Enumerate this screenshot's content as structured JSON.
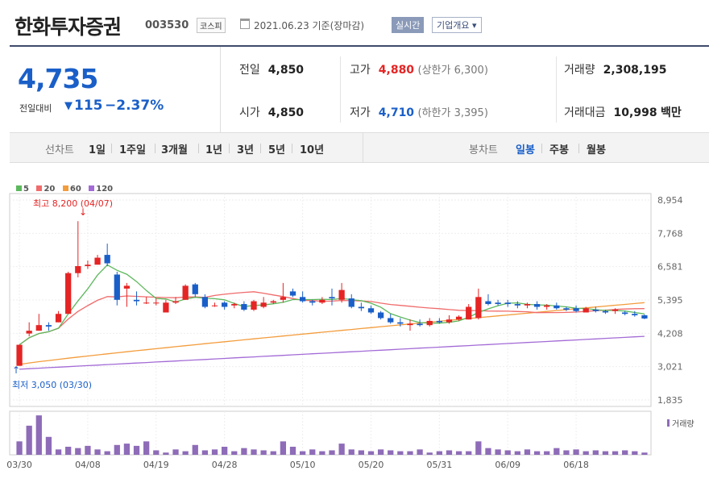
{
  "header": {
    "name": "한화투자증권",
    "code": "003530",
    "market": "코스피",
    "date": "2021.06.23 기준(장마감)",
    "realtime": "실시간",
    "company": "기업개요 ▾"
  },
  "summary": {
    "price": "4,735",
    "change_label": "전일대비",
    "change_arrow": "▼",
    "change": "115",
    "change_pct": "−2.37%",
    "prev_label": "전일",
    "prev": "4,850",
    "open_label": "시가",
    "open": "4,850",
    "high_label": "고가",
    "high": "4,880",
    "upper_limit": "(상한가 6,300)",
    "low_label": "저가",
    "low": "4,710",
    "lower_limit": "(하한가 3,395)",
    "volume_label": "거래량",
    "volume": "2,308,195",
    "amount_label": "거래대금",
    "amount": "10,998",
    "amount_unit": "백만"
  },
  "toolbar": {
    "line_label": "선차트",
    "line_items": [
      "1일",
      "1주일",
      "3개월",
      "1년",
      "3년",
      "5년",
      "10년"
    ],
    "candle_label": "봉차트",
    "candle_items": [
      "일봉",
      "주봉",
      "월봉"
    ]
  },
  "colors": {
    "up": "#e52424",
    "down": "#1a5fc8",
    "ma5": "#5cb85c",
    "ma20": "#f06b6b",
    "ma60": "#f39c3c",
    "ma120": "#a36bd6",
    "volume": "#8e6cb8"
  },
  "chart_data": {
    "type": "candlestick",
    "legend": [
      "5",
      "20",
      "60",
      "120"
    ],
    "high_annotation": "최고 8,200 (04/07)",
    "low_annotation": "최저 3,050 (03/30)",
    "y_ticks": [
      "8,954",
      "7,768",
      "6,581",
      "5,395",
      "4,208",
      "3,021",
      "1,835"
    ],
    "ylim": [
      1835,
      8954
    ],
    "x_ticks": [
      "03/30",
      "04/08",
      "04/19",
      "04/28",
      "05/10",
      "05/20",
      "05/31",
      "06/09",
      "06/18"
    ],
    "volume_label": "거래량",
    "candles": [
      {
        "o": 3050,
        "h": 3800,
        "l": 3050,
        "c": 3800
      },
      {
        "o": 4200,
        "h": 4600,
        "l": 4100,
        "c": 4300
      },
      {
        "o": 4300,
        "h": 4900,
        "l": 4300,
        "c": 4500
      },
      {
        "o": 4500,
        "h": 4600,
        "l": 4300,
        "c": 4450
      },
      {
        "o": 4600,
        "h": 5000,
        "l": 4600,
        "c": 4900
      },
      {
        "o": 4900,
        "h": 6400,
        "l": 4900,
        "c": 6350
      },
      {
        "o": 6350,
        "h": 8200,
        "l": 6200,
        "c": 6600
      },
      {
        "o": 6600,
        "h": 6800,
        "l": 6500,
        "c": 6650
      },
      {
        "o": 6650,
        "h": 7000,
        "l": 6700,
        "c": 6900
      },
      {
        "o": 7000,
        "h": 7400,
        "l": 6600,
        "c": 6700
      },
      {
        "o": 6300,
        "h": 6400,
        "l": 5200,
        "c": 5400
      },
      {
        "o": 5800,
        "h": 6000,
        "l": 5150,
        "c": 5900
      },
      {
        "o": 5400,
        "h": 5700,
        "l": 5200,
        "c": 5350
      },
      {
        "o": 5300,
        "h": 5500,
        "l": 5250,
        "c": 5300
      },
      {
        "o": 5300,
        "h": 5450,
        "l": 5200,
        "c": 5300
      },
      {
        "o": 4950,
        "h": 5400,
        "l": 4950,
        "c": 5300
      },
      {
        "o": 5300,
        "h": 5500,
        "l": 5250,
        "c": 5350
      },
      {
        "o": 5400,
        "h": 5950,
        "l": 5400,
        "c": 5900
      },
      {
        "o": 5950,
        "h": 6000,
        "l": 5500,
        "c": 5600
      },
      {
        "o": 5500,
        "h": 5600,
        "l": 5100,
        "c": 5150
      },
      {
        "o": 5200,
        "h": 5300,
        "l": 5150,
        "c": 5200
      },
      {
        "o": 5300,
        "h": 5350,
        "l": 5050,
        "c": 5150
      },
      {
        "o": 5200,
        "h": 5300,
        "l": 5100,
        "c": 5250
      },
      {
        "o": 5250,
        "h": 5350,
        "l": 5000,
        "c": 5050
      },
      {
        "o": 5050,
        "h": 5400,
        "l": 5000,
        "c": 5350
      },
      {
        "o": 5150,
        "h": 5500,
        "l": 5100,
        "c": 5300
      },
      {
        "o": 5300,
        "h": 5400,
        "l": 5250,
        "c": 5350
      },
      {
        "o": 5400,
        "h": 6000,
        "l": 5300,
        "c": 5500
      },
      {
        "o": 5700,
        "h": 5800,
        "l": 5500,
        "c": 5550
      },
      {
        "o": 5500,
        "h": 5700,
        "l": 5300,
        "c": 5350
      },
      {
        "o": 5350,
        "h": 5400,
        "l": 5200,
        "c": 5300
      },
      {
        "o": 5300,
        "h": 5500,
        "l": 5250,
        "c": 5400
      },
      {
        "o": 5500,
        "h": 5800,
        "l": 5200,
        "c": 5450
      },
      {
        "o": 5400,
        "h": 6000,
        "l": 5300,
        "c": 5750
      },
      {
        "o": 5450,
        "h": 5600,
        "l": 5100,
        "c": 5150
      },
      {
        "o": 5150,
        "h": 5300,
        "l": 5000,
        "c": 5100
      },
      {
        "o": 5100,
        "h": 5200,
        "l": 4900,
        "c": 4950
      },
      {
        "o": 4950,
        "h": 5000,
        "l": 4700,
        "c": 4750
      },
      {
        "o": 4750,
        "h": 4900,
        "l": 4550,
        "c": 4600
      },
      {
        "o": 4600,
        "h": 4750,
        "l": 4450,
        "c": 4550
      },
      {
        "o": 4500,
        "h": 4700,
        "l": 4300,
        "c": 4550
      },
      {
        "o": 4550,
        "h": 4700,
        "l": 4450,
        "c": 4500
      },
      {
        "o": 4500,
        "h": 4750,
        "l": 4450,
        "c": 4650
      },
      {
        "o": 4650,
        "h": 4750,
        "l": 4550,
        "c": 4600
      },
      {
        "o": 4600,
        "h": 4850,
        "l": 4550,
        "c": 4700
      },
      {
        "o": 4700,
        "h": 4850,
        "l": 4650,
        "c": 4800
      },
      {
        "o": 4700,
        "h": 5250,
        "l": 4700,
        "c": 5150
      },
      {
        "o": 4750,
        "h": 5800,
        "l": 4700,
        "c": 5500
      },
      {
        "o": 5350,
        "h": 5600,
        "l": 5200,
        "c": 5250
      },
      {
        "o": 5300,
        "h": 5400,
        "l": 5200,
        "c": 5250
      },
      {
        "o": 5300,
        "h": 5400,
        "l": 5150,
        "c": 5250
      },
      {
        "o": 5250,
        "h": 5350,
        "l": 5100,
        "c": 5200
      },
      {
        "o": 5200,
        "h": 5300,
        "l": 5100,
        "c": 5250
      },
      {
        "o": 5250,
        "h": 5350,
        "l": 5050,
        "c": 5150
      },
      {
        "o": 5150,
        "h": 5250,
        "l": 5050,
        "c": 5200
      },
      {
        "o": 5200,
        "h": 5300,
        "l": 5050,
        "c": 5100
      },
      {
        "o": 5100,
        "h": 5150,
        "l": 5000,
        "c": 5050
      },
      {
        "o": 5100,
        "h": 5200,
        "l": 4950,
        "c": 5000
      },
      {
        "o": 4950,
        "h": 5150,
        "l": 4950,
        "c": 5100
      },
      {
        "o": 5050,
        "h": 5150,
        "l": 4950,
        "c": 5000
      },
      {
        "o": 5000,
        "h": 5050,
        "l": 4900,
        "c": 4950
      },
      {
        "o": 5000,
        "h": 5100,
        "l": 4900,
        "c": 5050
      },
      {
        "o": 4950,
        "h": 5000,
        "l": 4850,
        "c": 4900
      },
      {
        "o": 4900,
        "h": 5000,
        "l": 4800,
        "c": 4850
      },
      {
        "o": 4850,
        "h": 4880,
        "l": 4710,
        "c": 4735
      }
    ],
    "volumes": [
      30,
      65,
      88,
      40,
      12,
      18,
      15,
      20,
      12,
      8,
      22,
      25,
      20,
      30,
      10,
      5,
      12,
      8,
      22,
      10,
      12,
      18,
      8,
      15,
      12,
      10,
      8,
      30,
      18,
      8,
      12,
      8,
      10,
      25,
      12,
      10,
      8,
      12,
      10,
      8,
      8,
      12,
      5,
      8,
      10,
      8,
      8,
      30,
      15,
      12,
      10,
      8,
      12,
      8,
      8,
      15,
      10,
      12,
      8,
      10,
      8,
      8,
      10,
      8,
      5
    ]
  }
}
